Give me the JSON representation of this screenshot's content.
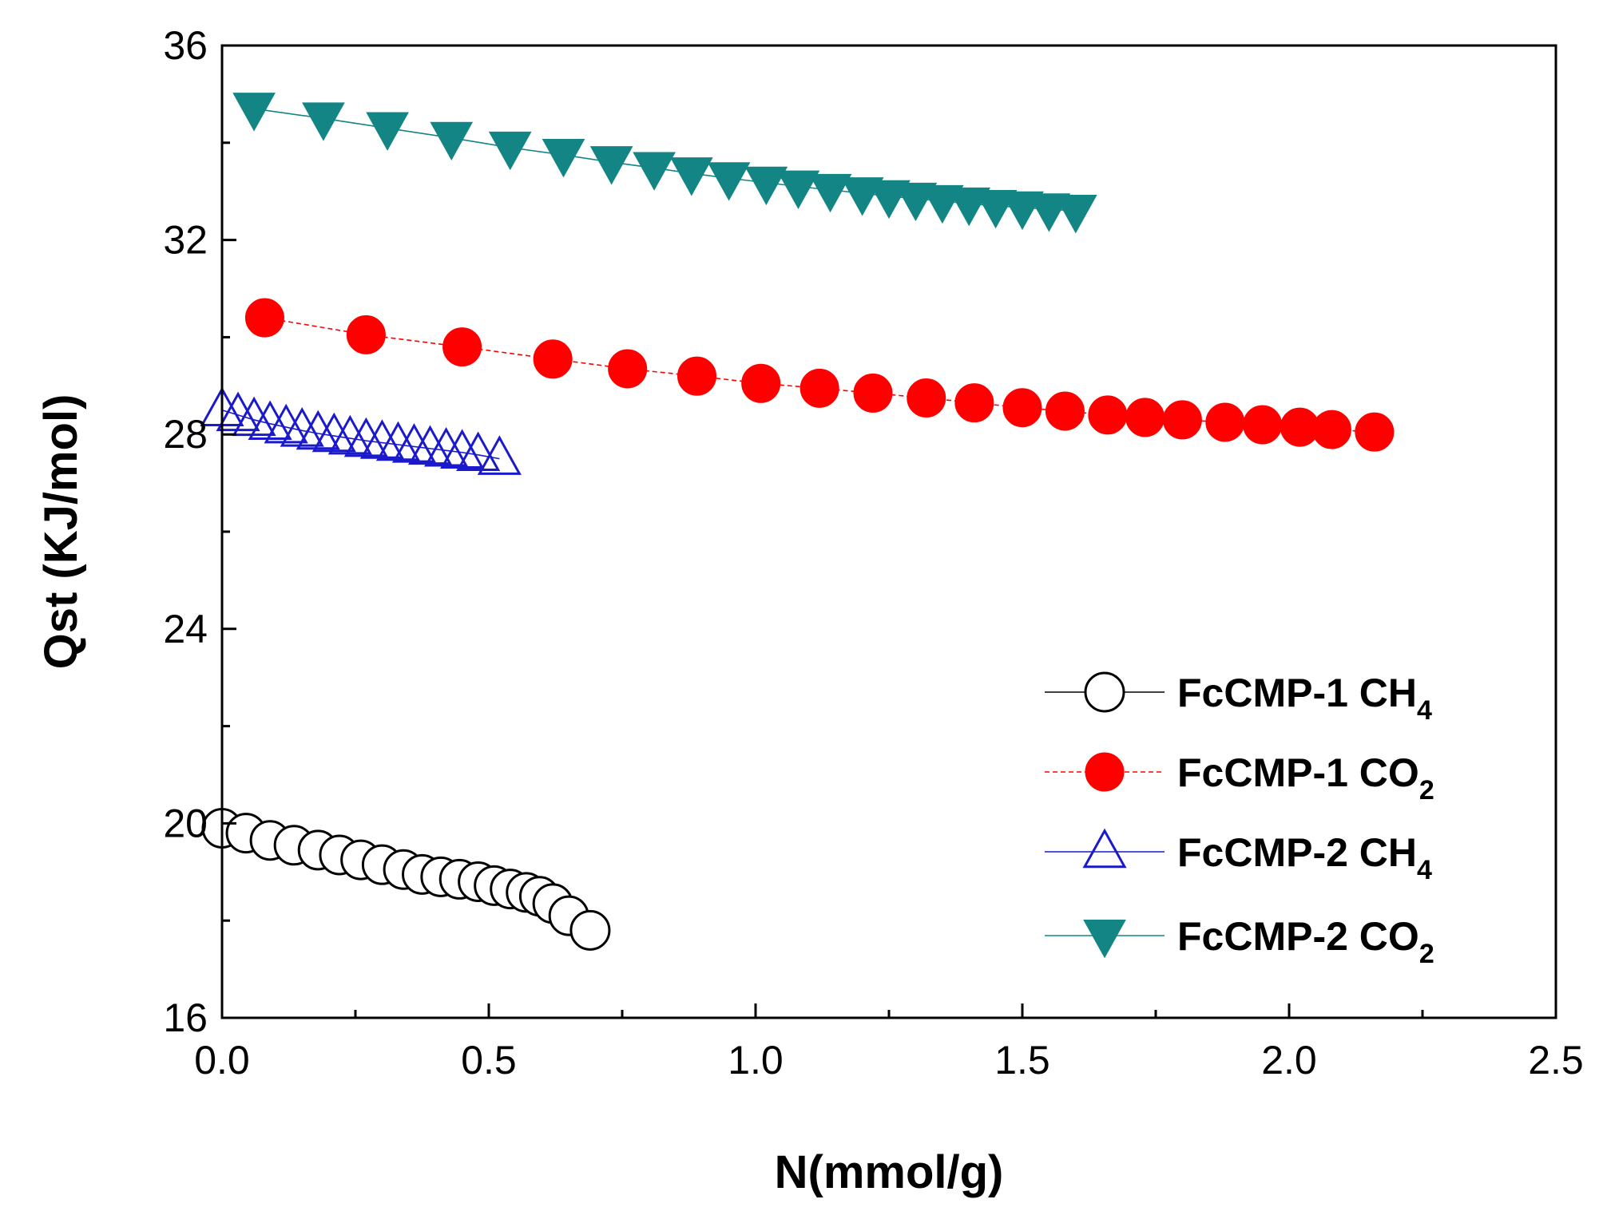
{
  "chart_data": {
    "type": "scatter",
    "xlabel": "N(mmol/g)",
    "ylabel": "Qst (KJ/mol)",
    "xlim": [
      0,
      2.5
    ],
    "ylim": [
      16,
      36
    ],
    "x_ticks": [
      0.0,
      0.5,
      1.0,
      1.5,
      2.0,
      2.5
    ],
    "x_tick_labels": [
      "0.0",
      "0.5",
      "1.0",
      "1.5",
      "2.0",
      "2.5"
    ],
    "y_ticks": [
      16,
      20,
      24,
      28,
      32,
      36
    ],
    "y_tick_labels": [
      "16",
      "20",
      "24",
      "28",
      "32",
      "36"
    ],
    "grid": false,
    "legend_position": "lower-right",
    "series": [
      {
        "name": "FcCMP-1 CH",
        "name_sub": "4",
        "marker": "circle-open",
        "color": "#000000",
        "line": "solid",
        "x": [
          0.0,
          0.045,
          0.09,
          0.135,
          0.18,
          0.22,
          0.26,
          0.3,
          0.34,
          0.375,
          0.41,
          0.445,
          0.48,
          0.51,
          0.54,
          0.57,
          0.595,
          0.62,
          0.65,
          0.69
        ],
        "y": [
          19.9,
          19.8,
          19.65,
          19.55,
          19.45,
          19.35,
          19.25,
          19.15,
          19.05,
          18.95,
          18.9,
          18.85,
          18.8,
          18.72,
          18.65,
          18.58,
          18.5,
          18.35,
          18.1,
          17.8
        ]
      },
      {
        "name": "FcCMP-1 CO",
        "name_sub": "2",
        "marker": "circle-filled",
        "color": "#ff0000",
        "line": "dashed",
        "x": [
          0.08,
          0.27,
          0.45,
          0.62,
          0.76,
          0.89,
          1.01,
          1.12,
          1.22,
          1.32,
          1.41,
          1.5,
          1.58,
          1.66,
          1.73,
          1.8,
          1.88,
          1.95,
          2.02,
          2.08,
          2.16
        ],
        "y": [
          30.4,
          30.05,
          29.8,
          29.55,
          29.35,
          29.2,
          29.05,
          28.95,
          28.85,
          28.75,
          28.65,
          28.55,
          28.48,
          28.4,
          28.35,
          28.3,
          28.25,
          28.2,
          28.15,
          28.1,
          28.05
        ]
      },
      {
        "name": "FcCMP-2 CH",
        "name_sub": "4",
        "marker": "triangle-up-open",
        "color": "#1a1acc",
        "line": "solid",
        "x": [
          0.0,
          0.03,
          0.06,
          0.09,
          0.12,
          0.15,
          0.18,
          0.21,
          0.24,
          0.27,
          0.3,
          0.33,
          0.36,
          0.39,
          0.42,
          0.45,
          0.48,
          0.52
        ],
        "y": [
          28.5,
          28.4,
          28.3,
          28.22,
          28.15,
          28.08,
          28.02,
          27.97,
          27.92,
          27.87,
          27.83,
          27.79,
          27.75,
          27.71,
          27.67,
          27.63,
          27.58,
          27.5
        ]
      },
      {
        "name": "FcCMP-2 CO",
        "name_sub": "2",
        "marker": "triangle-down-filled",
        "color": "#138585",
        "line": "solid",
        "x": [
          0.06,
          0.19,
          0.31,
          0.43,
          0.54,
          0.64,
          0.73,
          0.81,
          0.88,
          0.95,
          1.02,
          1.08,
          1.14,
          1.2,
          1.25,
          1.3,
          1.35,
          1.4,
          1.45,
          1.5,
          1.55,
          1.6
        ],
        "y": [
          34.7,
          34.5,
          34.3,
          34.1,
          33.9,
          33.75,
          33.6,
          33.48,
          33.37,
          33.27,
          33.18,
          33.1,
          33.03,
          32.96,
          32.9,
          32.85,
          32.8,
          32.75,
          32.7,
          32.67,
          32.63,
          32.6
        ]
      }
    ]
  }
}
